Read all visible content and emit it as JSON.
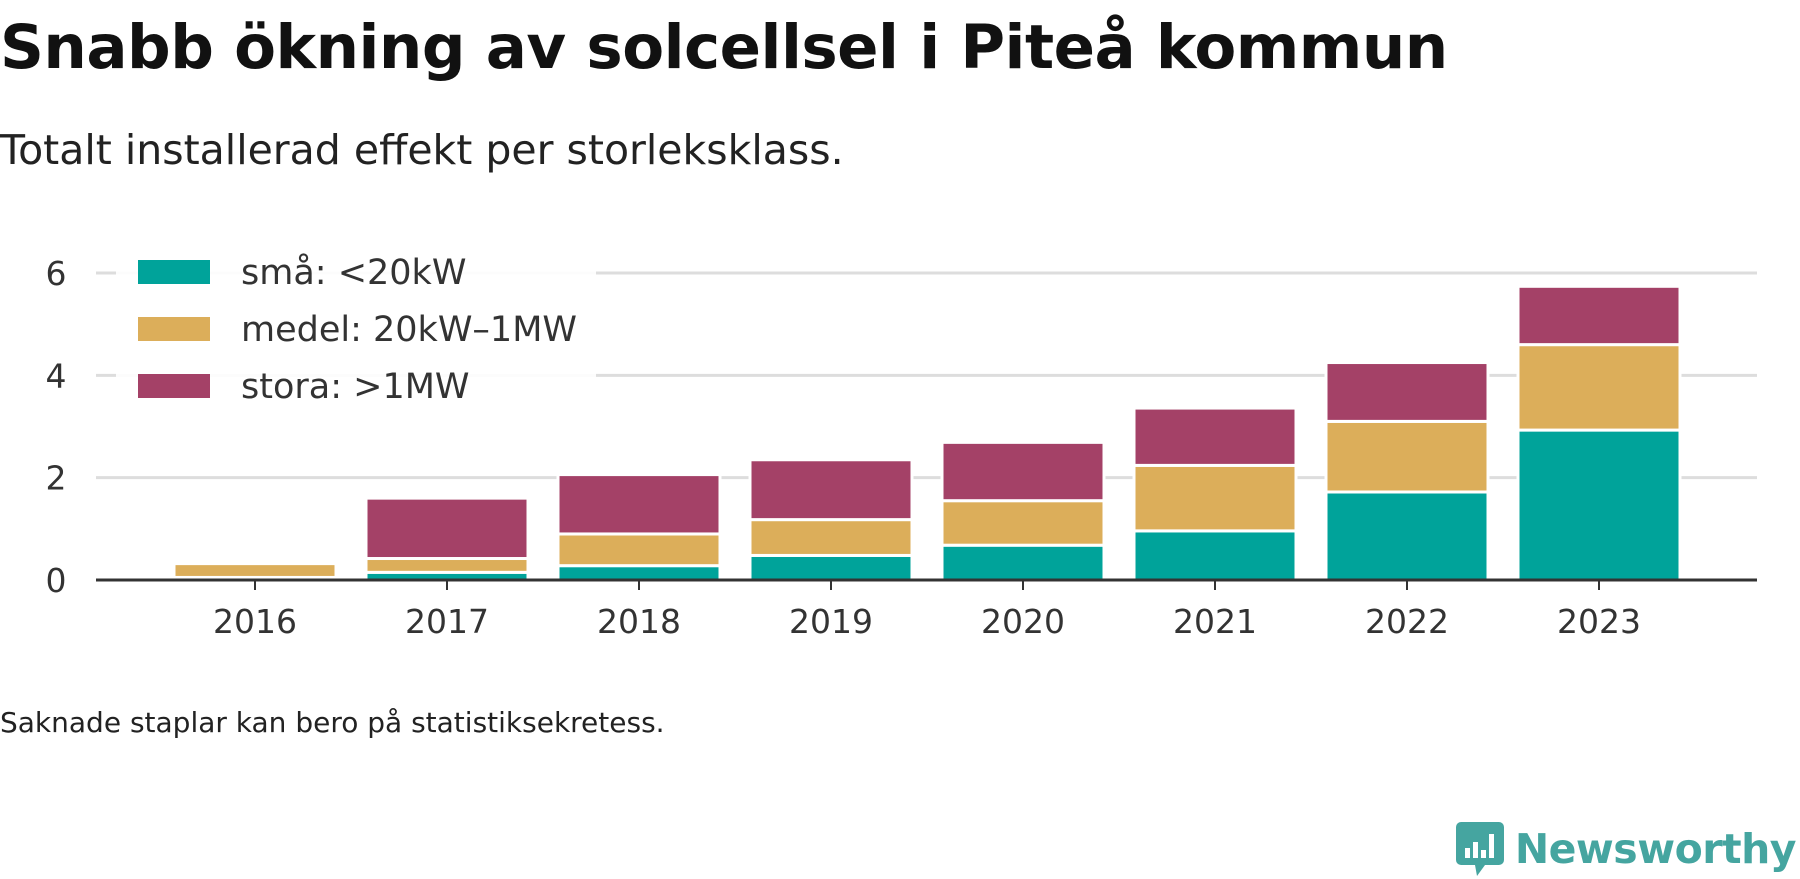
{
  "title": "Snabb ökning av solcellsel i Piteå kommun",
  "subtitle": "Totalt installerad effekt per storleksklass.",
  "note": "Saknade staplar kan bero på statistiksekretess.",
  "logo": {
    "text": "Newsworthy",
    "color": "#45a5a0"
  },
  "chart_data": {
    "type": "bar",
    "stacked": true,
    "categories": [
      "2016",
      "2017",
      "2018",
      "2019",
      "2020",
      "2021",
      "2022",
      "2023"
    ],
    "series": [
      {
        "name": "små: <20kW",
        "color": "#00a39a",
        "values": [
          0.05,
          0.15,
          0.28,
          0.48,
          0.68,
          0.96,
          1.72,
          2.93
        ]
      },
      {
        "name": "medel: 20kW–1MW",
        "color": "#dcae5a",
        "values": [
          0.27,
          0.27,
          0.62,
          0.7,
          0.87,
          1.28,
          1.38,
          1.67
        ]
      },
      {
        "name": "stora: >1MW",
        "color": "#a44167",
        "values": [
          0.0,
          1.18,
          1.16,
          1.17,
          1.14,
          1.12,
          1.15,
          1.14
        ]
      }
    ],
    "y_ticks": [
      "0",
      "2",
      "4",
      "6"
    ],
    "ylim": [
      0,
      6
    ],
    "grid": true,
    "legend_position": "top-left"
  }
}
